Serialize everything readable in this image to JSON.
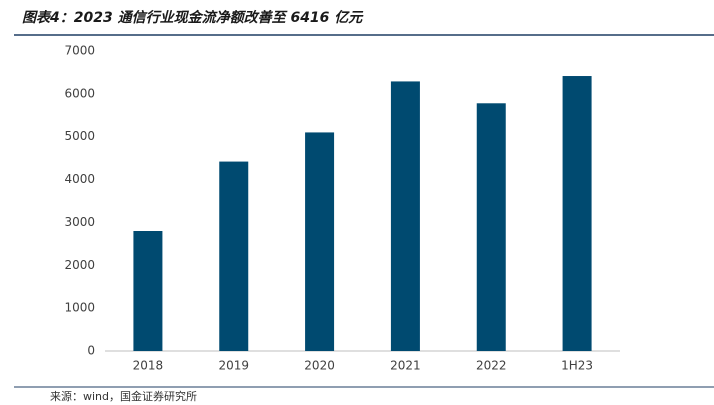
{
  "chart_data": {
    "type": "bar",
    "title": "图表4：2023 通信行业现金流净额改善至 6416 亿元",
    "source": "来源：wind，国金证券研究所",
    "categories": [
      "2018",
      "2019",
      "2020",
      "2021",
      "2022",
      "1H23"
    ],
    "values": [
      2800,
      4420,
      5100,
      6290,
      5780,
      6416
    ],
    "color": "#004a70",
    "ylim": [
      0,
      7000
    ],
    "yticks": [
      0,
      1000,
      2000,
      3000,
      4000,
      5000,
      6000,
      7000
    ],
    "grid": false
  }
}
